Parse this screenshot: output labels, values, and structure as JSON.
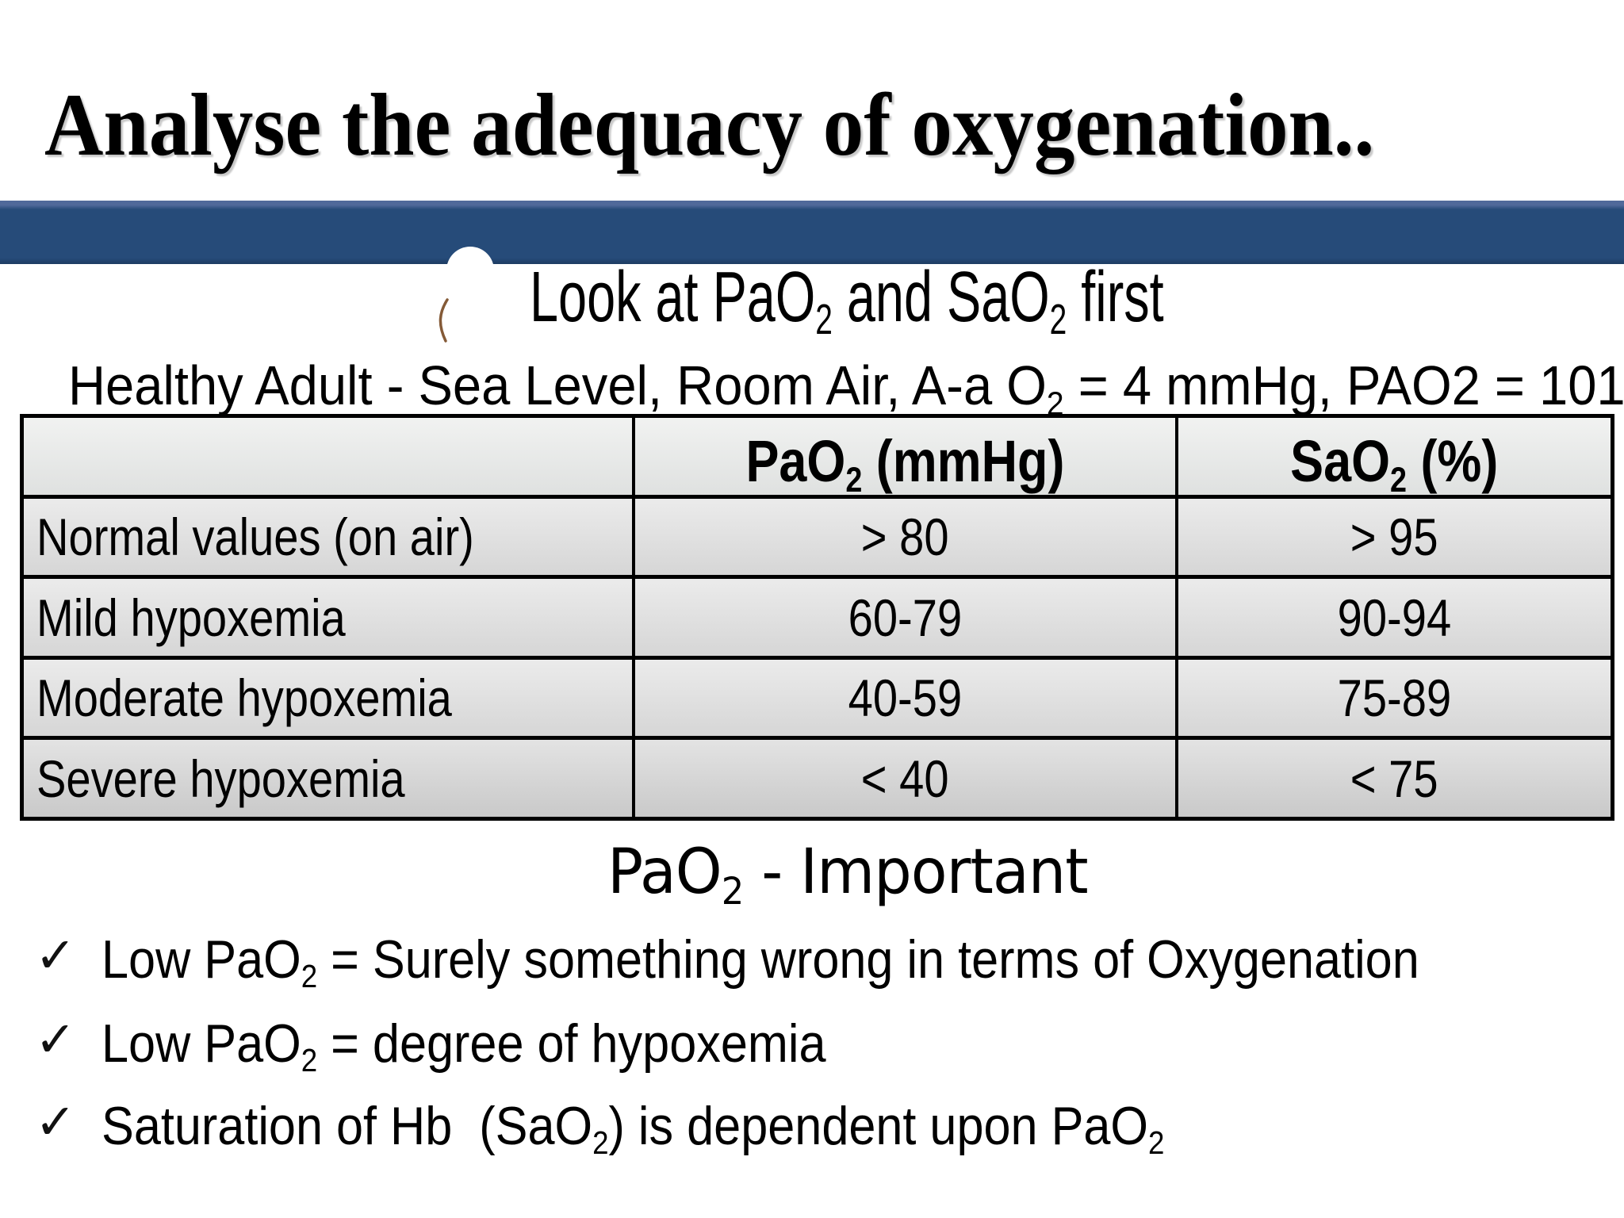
{
  "slide": {
    "title": "Analyse the adequacy of oxygenation..",
    "subtitle_segments": [
      {
        "t": "Look at PaO"
      },
      {
        "t": "2",
        "sub": true
      },
      {
        "t": " and SaO"
      },
      {
        "t": "2",
        "sub": true
      },
      {
        "t": " first"
      }
    ],
    "condition_line_segments": [
      {
        "t": "Healthy Adult - Sea Level, Room Air, A-a O"
      },
      {
        "t": "2",
        "sub": true
      },
      {
        "t": " = 4 mmHg, PAO2 = 101"
      }
    ],
    "table": {
      "col_headers": {
        "blank": "",
        "pao2_segments": [
          {
            "t": "PaO"
          },
          {
            "t": "2",
            "sub": true
          },
          {
            "t": " (mmHg)"
          }
        ],
        "sao2_segments": [
          {
            "t": "SaO"
          },
          {
            "t": "2",
            "sub": true
          },
          {
            "t": " (%)"
          }
        ]
      },
      "rows": [
        {
          "label": "Normal values (on air)",
          "pao2": "> 80",
          "sao2": "> 95"
        },
        {
          "label": "Mild hypoxemia",
          "pao2": "60-79",
          "sao2": "90-94"
        },
        {
          "label": "Moderate hypoxemia",
          "pao2": "40-59",
          "sao2": "75-89"
        },
        {
          "label": "Severe hypoxemia",
          "pao2": "< 40",
          "sao2": "< 75"
        }
      ]
    },
    "section_heading_segments": [
      {
        "t": "PaO"
      },
      {
        "t": "2",
        "sub": true
      },
      {
        "t": " - Important"
      }
    ],
    "bullets": [
      {
        "marker": "✓",
        "segments": [
          {
            "t": "Low PaO"
          },
          {
            "t": "2",
            "sub": true
          },
          {
            "t": " = Surely something wrong in terms of Oxygenation"
          }
        ]
      },
      {
        "marker": "✓",
        "segments": [
          {
            "t": "Low PaO"
          },
          {
            "t": "2",
            "sub": true
          },
          {
            "t": " = degree of hypoxemia"
          }
        ]
      },
      {
        "marker": "✓",
        "segments": [
          {
            "t": "Saturation of Hb  (SaO"
          },
          {
            "t": "2",
            "sub": true
          },
          {
            "t": ") is dependent upon PaO"
          },
          {
            "t": "2",
            "sub": true
          }
        ]
      }
    ],
    "colors": {
      "bar_blue": "#264b79",
      "bar_blue_highlight": "#50699a",
      "table_border": "#000000",
      "cell_gray_top": "#ebebeb",
      "cell_gray_bottom": "#d6d6d6",
      "text": "#000000",
      "arc_mark_brown": "#6e3d14"
    }
  }
}
